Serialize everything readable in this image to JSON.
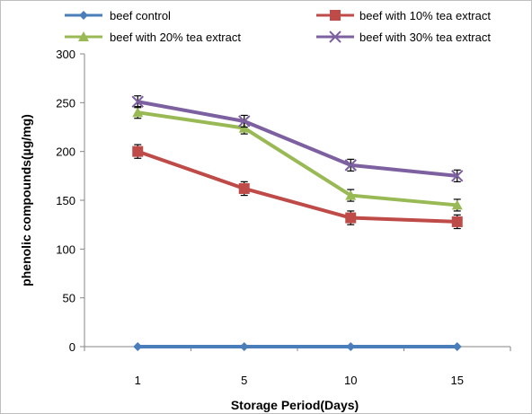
{
  "chart_data": {
    "type": "line",
    "title": "",
    "xlabel": "Storage Period(Days)",
    "ylabel": "phenolic compounds(µg/mg)",
    "categories": [
      "1",
      "5",
      "10",
      "15"
    ],
    "ylim": [
      0,
      300
    ],
    "yticks": [
      0,
      50,
      100,
      150,
      200,
      250,
      300
    ],
    "grid": false,
    "legend_position": "top",
    "series": [
      {
        "name": "beef control",
        "values": [
          0,
          0,
          0,
          0
        ],
        "error": [
          0,
          0,
          0,
          0
        ],
        "color": "#4A7EBB",
        "marker": "diamond"
      },
      {
        "name": "beef with 10% tea extract",
        "values": [
          200,
          162,
          132,
          128
        ],
        "error": [
          7,
          7,
          7,
          7
        ],
        "color": "#BE4B48",
        "marker": "square"
      },
      {
        "name": "beef with 20% tea extract",
        "values": [
          240,
          224,
          155,
          145
        ],
        "error": [
          6,
          6,
          6,
          6
        ],
        "color": "#98B954",
        "marker": "triangle"
      },
      {
        "name": "beef with 30% tea extract",
        "values": [
          251,
          231,
          186,
          175
        ],
        "error": [
          6,
          6,
          6,
          6
        ],
        "color": "#7D60A0",
        "marker": "x"
      }
    ]
  }
}
